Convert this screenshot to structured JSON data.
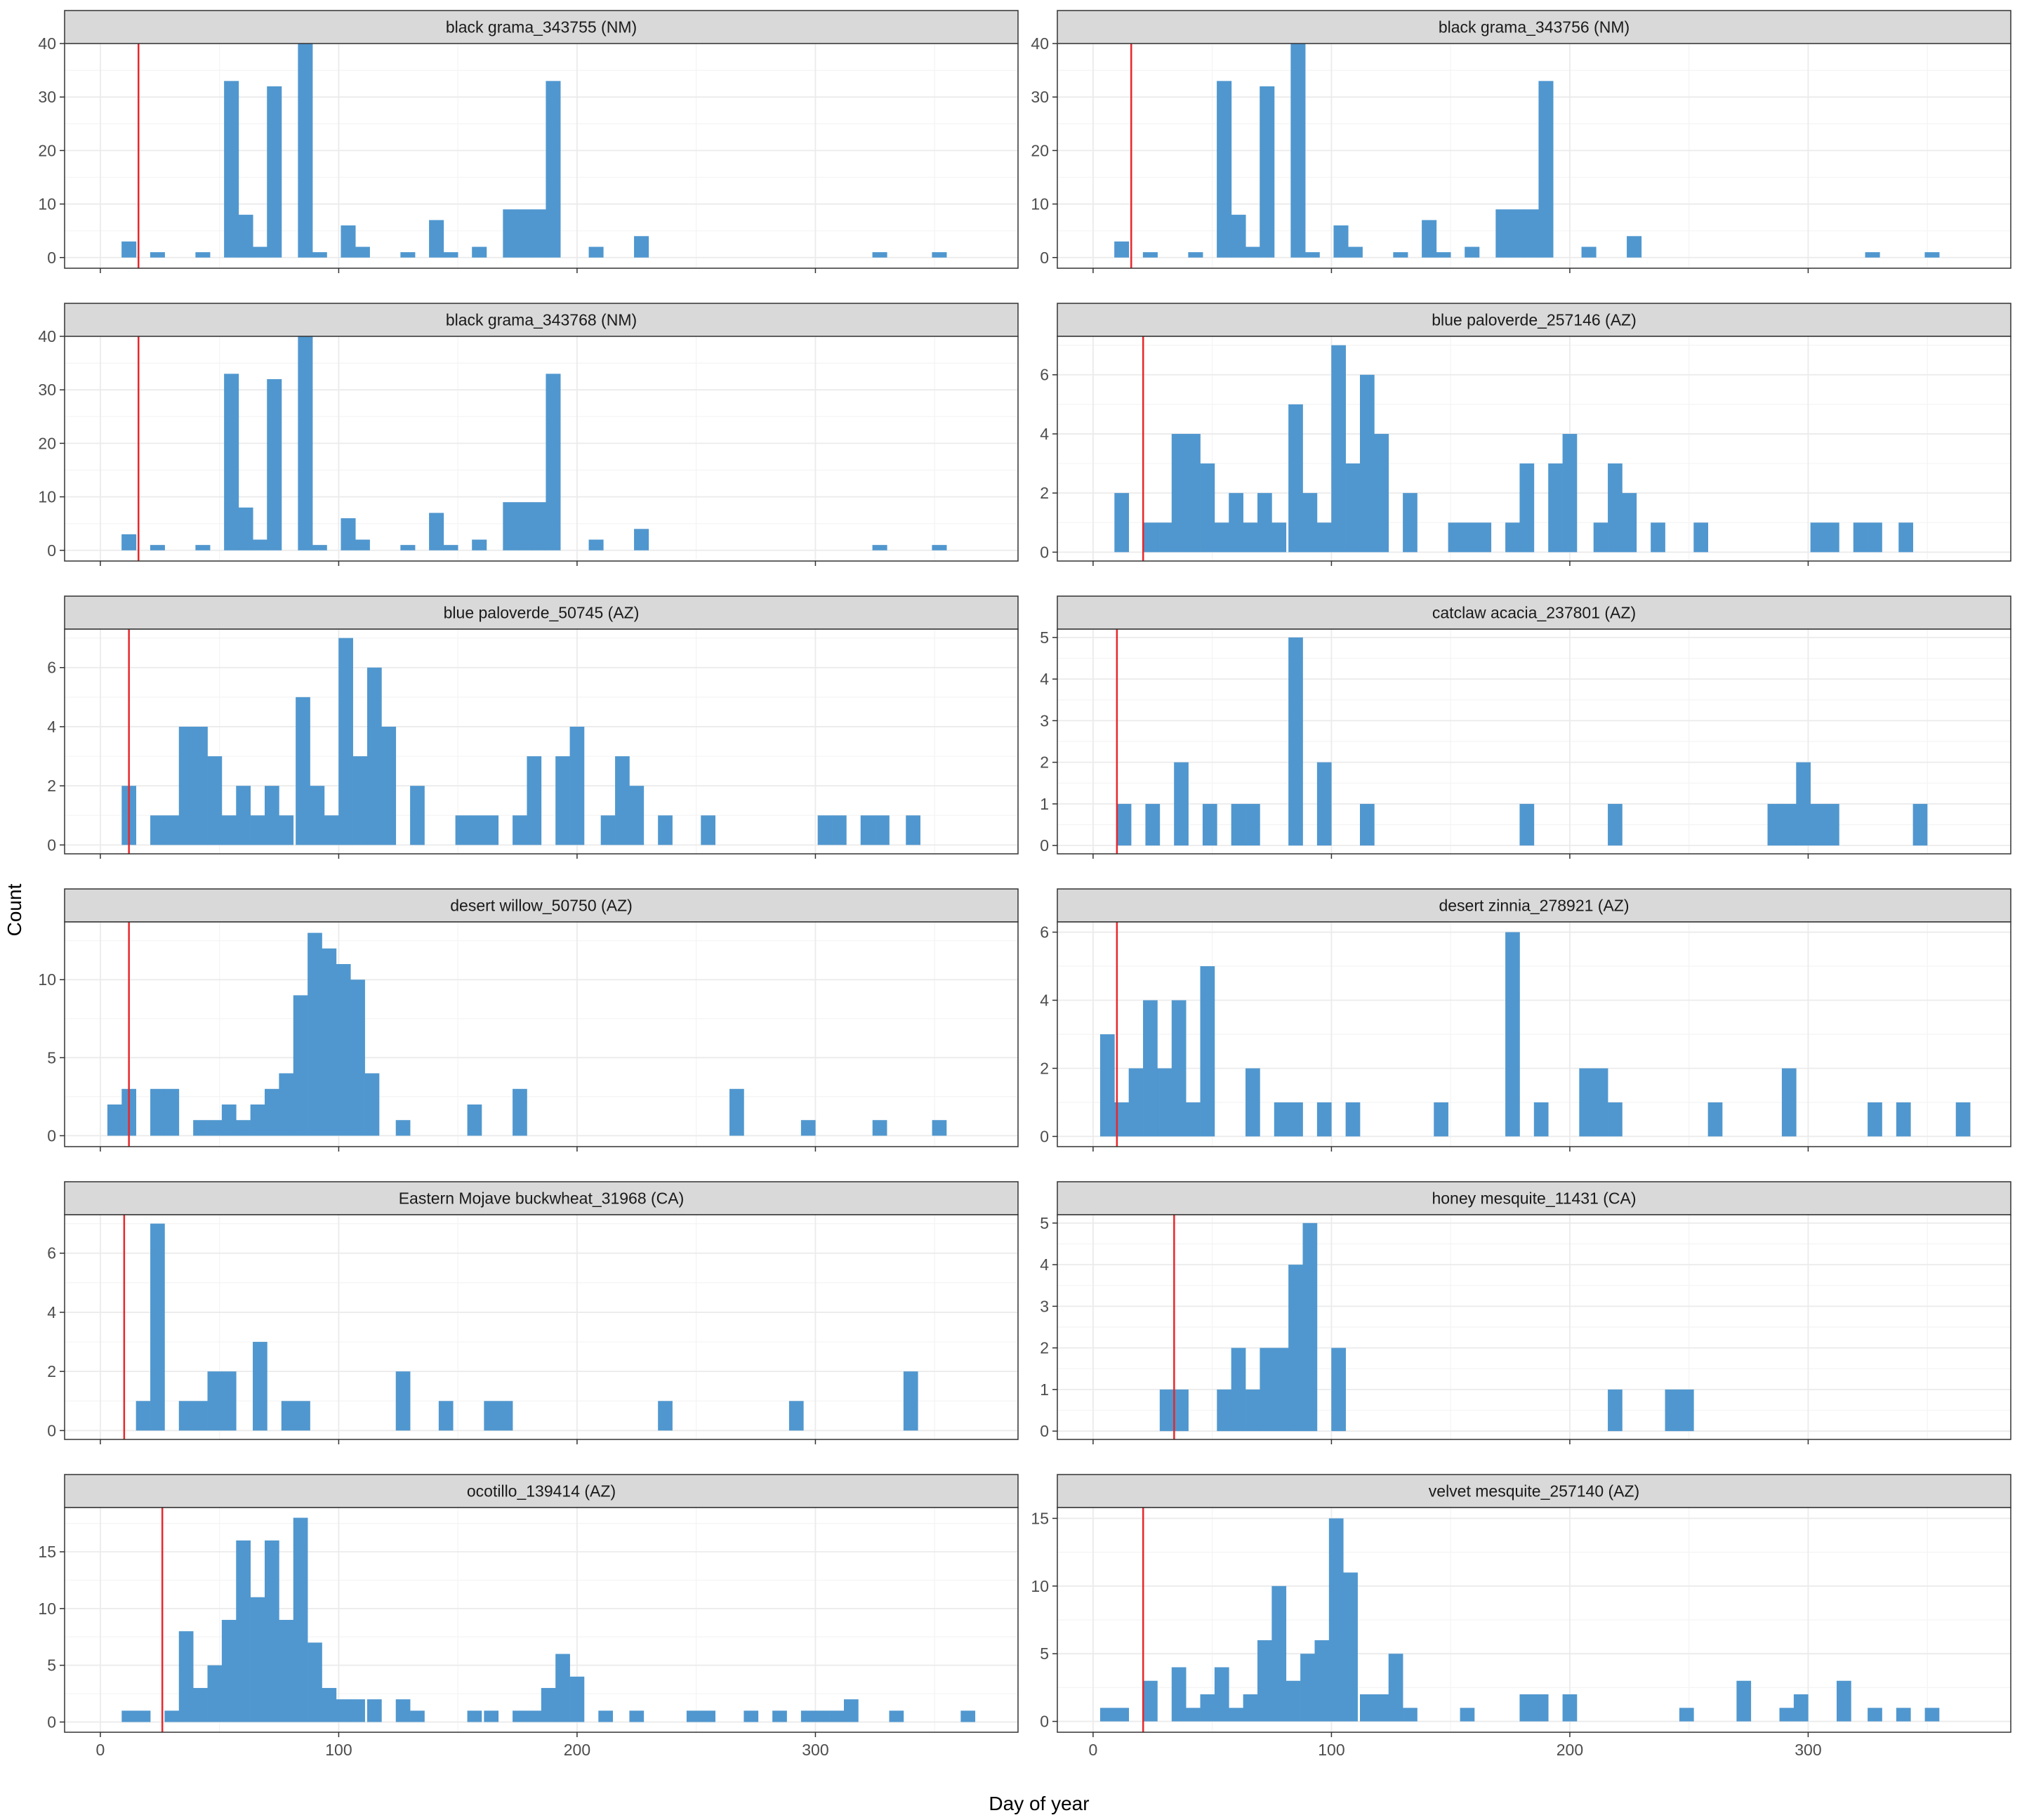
{
  "figure": {
    "xlabel": "Day of year",
    "ylabel": "Count",
    "bar_color": "#5097CF",
    "vline_color": "#E8272B",
    "strip_fill": "#D9D9D9",
    "grid_color": "#EBEBEB"
  },
  "chart_data": [
    {
      "type": "bar",
      "title": "black grama_343755 (NM)",
      "xlim": [
        -15,
        385
      ],
      "ylim": [
        -2,
        40
      ],
      "yticks": [
        0,
        10,
        20,
        30,
        40
      ],
      "xticks": [
        0,
        100,
        200,
        300
      ],
      "vline": 16,
      "bin_width": 6.2,
      "bins": [
        [
          12,
          3
        ],
        [
          24,
          1
        ],
        [
          43,
          1
        ],
        [
          55,
          33
        ],
        [
          61,
          8
        ],
        [
          67,
          2
        ],
        [
          73,
          32
        ],
        [
          86,
          40
        ],
        [
          92,
          1
        ],
        [
          104,
          6
        ],
        [
          110,
          2
        ],
        [
          129,
          1
        ],
        [
          141,
          7
        ],
        [
          147,
          1
        ],
        [
          159,
          2
        ],
        [
          172,
          9
        ],
        [
          178,
          9
        ],
        [
          184,
          9
        ],
        [
          190,
          33
        ],
        [
          208,
          2
        ],
        [
          227,
          4
        ],
        [
          327,
          1
        ],
        [
          352,
          1
        ]
      ]
    },
    {
      "type": "bar",
      "title": "black grama_343756 (NM)",
      "xlim": [
        -15,
        385
      ],
      "ylim": [
        -2,
        40
      ],
      "yticks": [
        0,
        10,
        20,
        30,
        40
      ],
      "xticks": [
        0,
        100,
        200,
        300
      ],
      "vline": 16,
      "bin_width": 6.2,
      "bins": [
        [
          12,
          3
        ],
        [
          24,
          1
        ],
        [
          43,
          1
        ],
        [
          55,
          33
        ],
        [
          61,
          8
        ],
        [
          67,
          2
        ],
        [
          73,
          32
        ],
        [
          86,
          40
        ],
        [
          92,
          1
        ],
        [
          104,
          6
        ],
        [
          110,
          2
        ],
        [
          129,
          1
        ],
        [
          141,
          7
        ],
        [
          147,
          1
        ],
        [
          159,
          2
        ],
        [
          172,
          9
        ],
        [
          178,
          9
        ],
        [
          184,
          9
        ],
        [
          190,
          33
        ],
        [
          208,
          2
        ],
        [
          227,
          4
        ],
        [
          327,
          1
        ],
        [
          352,
          1
        ]
      ]
    },
    {
      "type": "bar",
      "title": "black grama_343768 (NM)",
      "xlim": [
        -15,
        385
      ],
      "ylim": [
        -2,
        40
      ],
      "yticks": [
        0,
        10,
        20,
        30,
        40
      ],
      "xticks": [
        0,
        100,
        200,
        300
      ],
      "vline": 16,
      "bin_width": 6.2,
      "bins": [
        [
          12,
          3
        ],
        [
          24,
          1
        ],
        [
          43,
          1
        ],
        [
          55,
          33
        ],
        [
          61,
          8
        ],
        [
          67,
          2
        ],
        [
          73,
          32
        ],
        [
          86,
          40
        ],
        [
          92,
          1
        ],
        [
          104,
          6
        ],
        [
          110,
          2
        ],
        [
          129,
          1
        ],
        [
          141,
          7
        ],
        [
          147,
          1
        ],
        [
          159,
          2
        ],
        [
          172,
          9
        ],
        [
          178,
          9
        ],
        [
          184,
          9
        ],
        [
          190,
          33
        ],
        [
          208,
          2
        ],
        [
          227,
          4
        ],
        [
          327,
          1
        ],
        [
          352,
          1
        ]
      ]
    },
    {
      "type": "bar",
      "title": "blue paloverde_257146 (AZ)",
      "xlim": [
        -15,
        385
      ],
      "ylim": [
        -0.3,
        7.3
      ],
      "yticks": [
        0,
        2,
        4,
        6
      ],
      "xticks": [
        0,
        100,
        200,
        300
      ],
      "vline": 21,
      "bin_width": 6.1,
      "bins": [
        [
          12,
          2
        ],
        [
          24,
          1
        ],
        [
          30,
          1
        ],
        [
          36,
          4
        ],
        [
          42,
          4
        ],
        [
          48,
          3
        ],
        [
          54,
          1
        ],
        [
          60,
          2
        ],
        [
          66,
          1
        ],
        [
          72,
          2
        ],
        [
          78,
          1
        ],
        [
          85,
          5
        ],
        [
          91,
          2
        ],
        [
          97,
          1
        ],
        [
          103,
          7
        ],
        [
          109,
          3
        ],
        [
          115,
          6
        ],
        [
          121,
          4
        ],
        [
          133,
          2
        ],
        [
          152,
          1
        ],
        [
          158,
          1
        ],
        [
          164,
          1
        ],
        [
          176,
          1
        ],
        [
          182,
          3
        ],
        [
          194,
          3
        ],
        [
          200,
          4
        ],
        [
          213,
          1
        ],
        [
          219,
          3
        ],
        [
          225,
          2
        ],
        [
          237,
          1
        ],
        [
          255,
          1
        ],
        [
          304,
          1
        ],
        [
          310,
          1
        ],
        [
          322,
          1
        ],
        [
          328,
          1
        ],
        [
          341,
          1
        ]
      ]
    },
    {
      "type": "bar",
      "title": "blue paloverde_50745 (AZ)",
      "xlim": [
        -15,
        385
      ],
      "ylim": [
        -0.3,
        7.3
      ],
      "yticks": [
        0,
        2,
        4,
        6
      ],
      "xticks": [
        0,
        100,
        200,
        300
      ],
      "vline": 12,
      "bin_width": 6.1,
      "bins": [
        [
          12,
          2
        ],
        [
          24,
          1
        ],
        [
          30,
          1
        ],
        [
          36,
          4
        ],
        [
          42,
          4
        ],
        [
          48,
          3
        ],
        [
          54,
          1
        ],
        [
          60,
          2
        ],
        [
          66,
          1
        ],
        [
          72,
          2
        ],
        [
          78,
          1
        ],
        [
          85,
          5
        ],
        [
          91,
          2
        ],
        [
          97,
          1
        ],
        [
          103,
          7
        ],
        [
          109,
          3
        ],
        [
          115,
          6
        ],
        [
          121,
          4
        ],
        [
          133,
          2
        ],
        [
          152,
          1
        ],
        [
          158,
          1
        ],
        [
          164,
          1
        ],
        [
          176,
          1
        ],
        [
          182,
          3
        ],
        [
          194,
          3
        ],
        [
          200,
          4
        ],
        [
          213,
          1
        ],
        [
          219,
          3
        ],
        [
          225,
          2
        ],
        [
          237,
          1
        ],
        [
          255,
          1
        ],
        [
          304,
          1
        ],
        [
          310,
          1
        ],
        [
          322,
          1
        ],
        [
          328,
          1
        ],
        [
          341,
          1
        ]
      ]
    },
    {
      "type": "bar",
      "title": "catclaw acacia_237801 (AZ)",
      "xlim": [
        -15,
        385
      ],
      "ylim": [
        -0.2,
        5.2
      ],
      "yticks": [
        0,
        1,
        2,
        3,
        4,
        5
      ],
      "xticks": [
        0,
        100,
        200,
        300
      ],
      "vline": 10,
      "bin_width": 6.1,
      "bins": [
        [
          13,
          1
        ],
        [
          25,
          1
        ],
        [
          37,
          2
        ],
        [
          49,
          1
        ],
        [
          61,
          1
        ],
        [
          67,
          1
        ],
        [
          85,
          5
        ],
        [
          97,
          2
        ],
        [
          115,
          1
        ],
        [
          182,
          1
        ],
        [
          219,
          1
        ],
        [
          286,
          1
        ],
        [
          292,
          1
        ],
        [
          298,
          2
        ],
        [
          304,
          1
        ],
        [
          310,
          1
        ],
        [
          347,
          1
        ]
      ]
    },
    {
      "type": "bar",
      "title": "desert willow_50750 (AZ)",
      "xlim": [
        -15,
        385
      ],
      "ylim": [
        -0.7,
        13.7
      ],
      "yticks": [
        0,
        5,
        10
      ],
      "xticks": [
        0,
        100,
        200,
        300
      ],
      "vline": 12,
      "bin_width": 6.1,
      "bins": [
        [
          6,
          2
        ],
        [
          12,
          3
        ],
        [
          24,
          3
        ],
        [
          30,
          3
        ],
        [
          42,
          1
        ],
        [
          48,
          1
        ],
        [
          54,
          2
        ],
        [
          60,
          1
        ],
        [
          66,
          2
        ],
        [
          72,
          3
        ],
        [
          78,
          4
        ],
        [
          84,
          9
        ],
        [
          90,
          13
        ],
        [
          96,
          12
        ],
        [
          102,
          11
        ],
        [
          108,
          10
        ],
        [
          114,
          4
        ],
        [
          127,
          1
        ],
        [
          157,
          2
        ],
        [
          176,
          3
        ],
        [
          267,
          3
        ],
        [
          297,
          1
        ],
        [
          327,
          1
        ],
        [
          352,
          1
        ]
      ]
    },
    {
      "type": "bar",
      "title": "desert zinnia_278921 (AZ)",
      "xlim": [
        -15,
        385
      ],
      "ylim": [
        -0.3,
        6.3
      ],
      "yticks": [
        0,
        2,
        4,
        6
      ],
      "xticks": [
        0,
        100,
        200,
        300
      ],
      "vline": 10,
      "bin_width": 6.1,
      "bins": [
        [
          6,
          3
        ],
        [
          12,
          1
        ],
        [
          18,
          2
        ],
        [
          24,
          4
        ],
        [
          30,
          2
        ],
        [
          36,
          4
        ],
        [
          42,
          1
        ],
        [
          48,
          5
        ],
        [
          67,
          2
        ],
        [
          79,
          1
        ],
        [
          85,
          1
        ],
        [
          97,
          1
        ],
        [
          109,
          1
        ],
        [
          146,
          1
        ],
        [
          176,
          6
        ],
        [
          188,
          1
        ],
        [
          207,
          2
        ],
        [
          213,
          2
        ],
        [
          219,
          1
        ],
        [
          261,
          1
        ],
        [
          292,
          2
        ],
        [
          328,
          1
        ],
        [
          340,
          1
        ],
        [
          365,
          1
        ]
      ]
    },
    {
      "type": "bar",
      "title": "Eastern Mojave buckwheat_31968 (CA)",
      "xlim": [
        -15,
        385
      ],
      "ylim": [
        -0.3,
        7.3
      ],
      "yticks": [
        0,
        2,
        4,
        6
      ],
      "xticks": [
        0,
        100,
        200,
        300
      ],
      "vline": 10,
      "bin_width": 6.1,
      "bins": [
        [
          18,
          1
        ],
        [
          24,
          7
        ],
        [
          36,
          1
        ],
        [
          42,
          1
        ],
        [
          48,
          2
        ],
        [
          54,
          2
        ],
        [
          67,
          3
        ],
        [
          79,
          1
        ],
        [
          85,
          1
        ],
        [
          127,
          2
        ],
        [
          145,
          1
        ],
        [
          164,
          1
        ],
        [
          170,
          1
        ],
        [
          237,
          1
        ],
        [
          292,
          1
        ],
        [
          340,
          2
        ]
      ]
    },
    {
      "type": "bar",
      "title": "honey mesquite_11431 (CA)",
      "xlim": [
        -15,
        385
      ],
      "ylim": [
        -0.2,
        5.2
      ],
      "yticks": [
        0,
        1,
        2,
        3,
        4,
        5
      ],
      "xticks": [
        0,
        100,
        200,
        300
      ],
      "vline": 34,
      "bin_width": 6.1,
      "bins": [
        [
          31,
          1
        ],
        [
          37,
          1
        ],
        [
          55,
          1
        ],
        [
          61,
          2
        ],
        [
          67,
          1
        ],
        [
          73,
          2
        ],
        [
          79,
          2
        ],
        [
          85,
          4
        ],
        [
          91,
          5
        ],
        [
          103,
          2
        ],
        [
          219,
          1
        ],
        [
          243,
          1
        ],
        [
          249,
          1
        ]
      ]
    },
    {
      "type": "bar",
      "title": "ocotillo_139414 (AZ)",
      "xlim": [
        -15,
        385
      ],
      "ylim": [
        -0.9,
        18.9
      ],
      "yticks": [
        0,
        5,
        10,
        15
      ],
      "xticks": [
        0,
        100,
        200,
        300
      ],
      "vline": 26,
      "bin_width": 6.1,
      "bins": [
        [
          12,
          1
        ],
        [
          18,
          1
        ],
        [
          30,
          1
        ],
        [
          36,
          8
        ],
        [
          42,
          3
        ],
        [
          48,
          5
        ],
        [
          54,
          9
        ],
        [
          60,
          16
        ],
        [
          66,
          11
        ],
        [
          72,
          16
        ],
        [
          78,
          9
        ],
        [
          84,
          18
        ],
        [
          90,
          7
        ],
        [
          96,
          3
        ],
        [
          102,
          2
        ],
        [
          108,
          2
        ],
        [
          115,
          2
        ],
        [
          127,
          2
        ],
        [
          133,
          1
        ],
        [
          157,
          1
        ],
        [
          164,
          1
        ],
        [
          176,
          1
        ],
        [
          182,
          1
        ],
        [
          188,
          3
        ],
        [
          194,
          6
        ],
        [
          200,
          4
        ],
        [
          212,
          1
        ],
        [
          225,
          1
        ],
        [
          249,
          1
        ],
        [
          255,
          1
        ],
        [
          273,
          1
        ],
        [
          285,
          1
        ],
        [
          297,
          1
        ],
        [
          303,
          1
        ],
        [
          309,
          1
        ],
        [
          315,
          2
        ],
        [
          334,
          1
        ],
        [
          364,
          1
        ]
      ]
    },
    {
      "type": "bar",
      "title": "velvet mesquite_257140 (AZ)",
      "xlim": [
        -15,
        385
      ],
      "ylim": [
        -0.8,
        15.8
      ],
      "yticks": [
        0,
        5,
        10,
        15
      ],
      "xticks": [
        0,
        100,
        200,
        300
      ],
      "vline": 21,
      "bin_width": 6.1,
      "bins": [
        [
          6,
          1
        ],
        [
          12,
          1
        ],
        [
          24,
          3
        ],
        [
          36,
          4
        ],
        [
          42,
          1
        ],
        [
          48,
          2
        ],
        [
          54,
          4
        ],
        [
          60,
          1
        ],
        [
          66,
          2
        ],
        [
          72,
          6
        ],
        [
          78,
          10
        ],
        [
          84,
          3
        ],
        [
          90,
          5
        ],
        [
          96,
          6
        ],
        [
          102,
          15
        ],
        [
          108,
          11
        ],
        [
          115,
          2
        ],
        [
          121,
          2
        ],
        [
          127,
          5
        ],
        [
          133,
          1
        ],
        [
          157,
          1
        ],
        [
          182,
          2
        ],
        [
          188,
          2
        ],
        [
          200,
          2
        ],
        [
          249,
          1
        ],
        [
          273,
          3
        ],
        [
          291,
          1
        ],
        [
          297,
          2
        ],
        [
          315,
          3
        ],
        [
          328,
          1
        ],
        [
          340,
          1
        ],
        [
          352,
          1
        ]
      ]
    }
  ]
}
